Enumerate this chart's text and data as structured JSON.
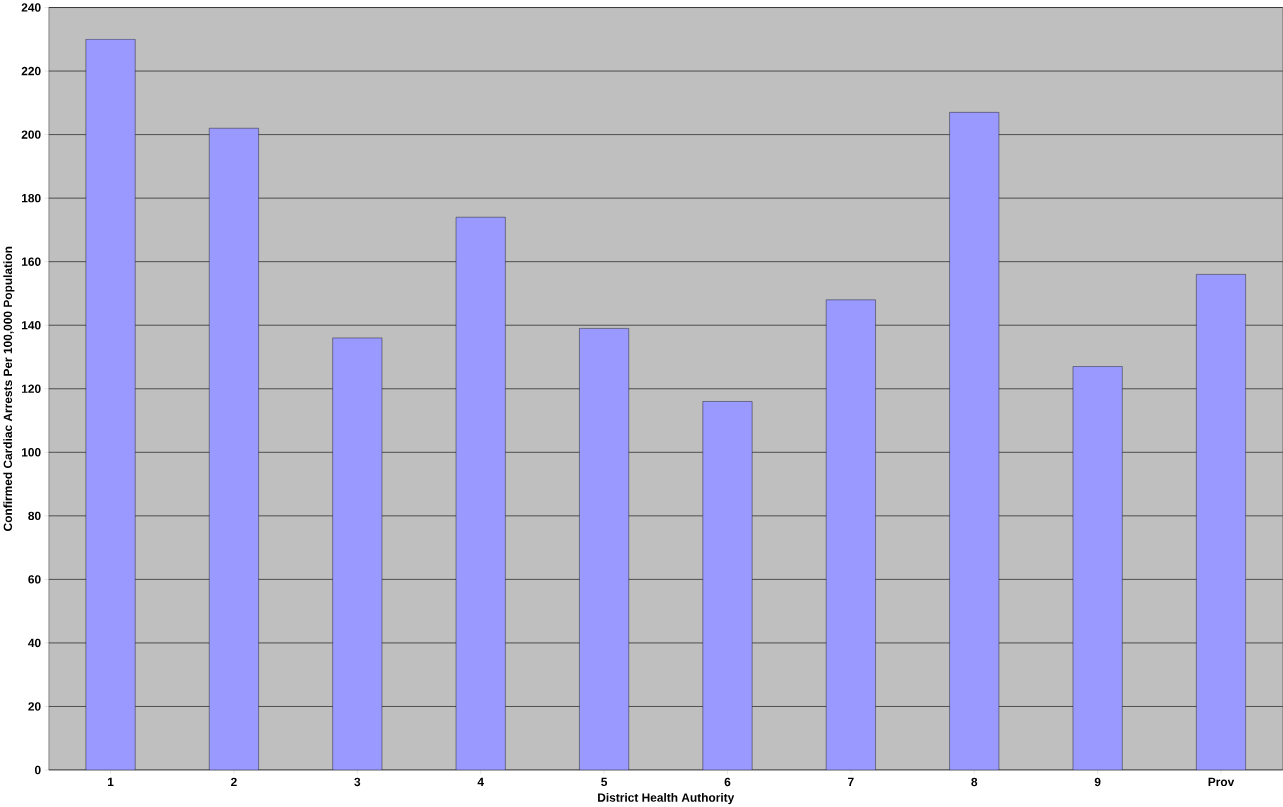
{
  "chart_data": {
    "type": "bar",
    "xlabel": "District Health Authority",
    "ylabel": "Confirmed Cardiac Arrests Per 100,000 Population",
    "categories": [
      "1",
      "2",
      "3",
      "4",
      "5",
      "6",
      "7",
      "8",
      "9",
      "Prov"
    ],
    "values": [
      230,
      202,
      136,
      174,
      139,
      116,
      148,
      207,
      127,
      156
    ],
    "color": "#9999ff",
    "ylim": [
      0,
      240
    ],
    "yticks": [
      0,
      20,
      40,
      60,
      80,
      100,
      120,
      140,
      160,
      180,
      200,
      220,
      240
    ],
    "grid": "y"
  }
}
